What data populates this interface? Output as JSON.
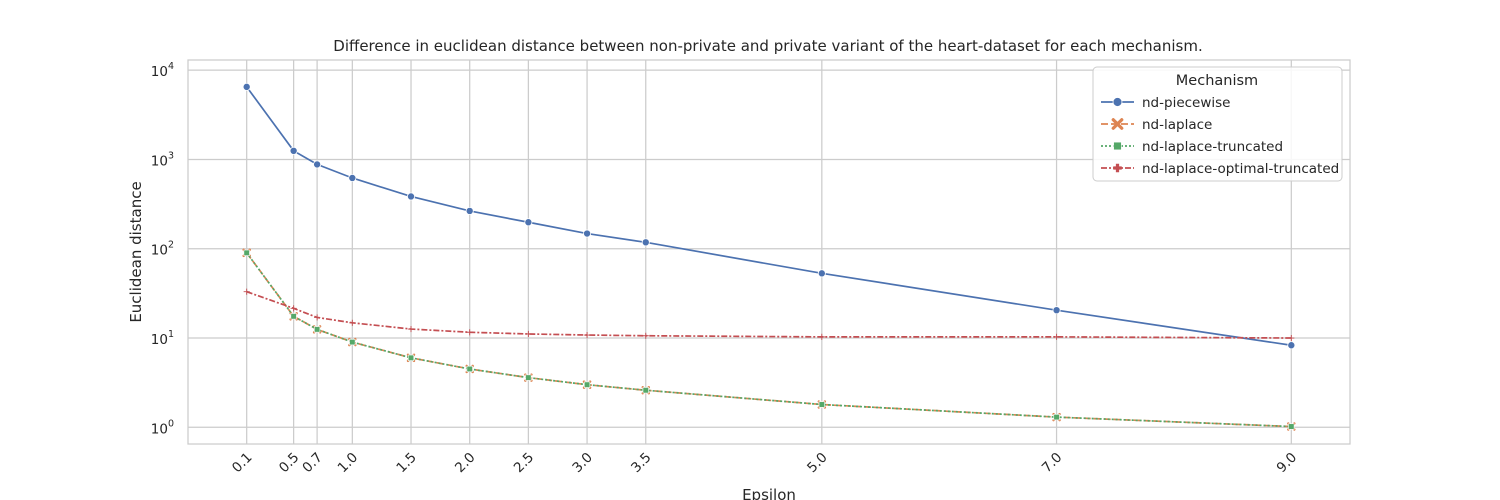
{
  "chart_data": {
    "type": "line",
    "title": "Difference in euclidean distance between non-private and private variant of the heart-dataset for each mechanism.",
    "xlabel": "Epsilon",
    "ylabel": "Euclidean distance",
    "yscale": "log",
    "ylim": [
      0.65,
      13000
    ],
    "xlim": [
      -0.4,
      9.5
    ],
    "grid": true,
    "x": [
      0.1,
      0.5,
      0.7,
      1.0,
      1.5,
      2.0,
      2.5,
      3.0,
      3.5,
      5.0,
      7.0,
      9.0
    ],
    "x_tick_labels": [
      "0.1",
      "0.5",
      "0.7",
      "1.0",
      "1.5",
      "2.0",
      "2.5",
      "3.0",
      "3.5",
      "5.0",
      "7.0",
      "9.0"
    ],
    "y_ticks": [
      {
        "value": 1,
        "base": "10",
        "exp": "0"
      },
      {
        "value": 10,
        "base": "10",
        "exp": "1"
      },
      {
        "value": 100,
        "base": "10",
        "exp": "2"
      },
      {
        "value": 1000,
        "base": "10",
        "exp": "3"
      },
      {
        "value": 10000,
        "base": "10",
        "exp": "4"
      }
    ],
    "legend": {
      "title": "Mechanism",
      "placement": "top-right"
    },
    "series": [
      {
        "name": "nd-piecewise",
        "color": "#4c72b0",
        "dash": "solid",
        "marker": "circle",
        "values": [
          6500,
          1250,
          880,
          620,
          385,
          265,
          198,
          148,
          118,
          53,
          20.5,
          8.3
        ]
      },
      {
        "name": "nd-laplace",
        "color": "#dd8452",
        "dash": "dashed",
        "marker": "x",
        "values": [
          90,
          17.5,
          12.5,
          9.0,
          6.0,
          4.5,
          3.6,
          3.0,
          2.6,
          1.8,
          1.3,
          1.02
        ]
      },
      {
        "name": "nd-laplace-truncated",
        "color": "#55a868",
        "dash": "dotted",
        "marker": "square",
        "values": [
          90,
          17.5,
          12.5,
          9.0,
          6.0,
          4.5,
          3.6,
          3.0,
          2.6,
          1.8,
          1.3,
          1.02
        ]
      },
      {
        "name": "nd-laplace-optimal-truncated",
        "color": "#c44e52",
        "dash": "dashdot",
        "marker": "plus",
        "values": [
          33,
          21.5,
          17.0,
          14.8,
          12.6,
          11.6,
          11.1,
          10.8,
          10.6,
          10.3,
          10.3,
          10.0
        ]
      }
    ]
  }
}
